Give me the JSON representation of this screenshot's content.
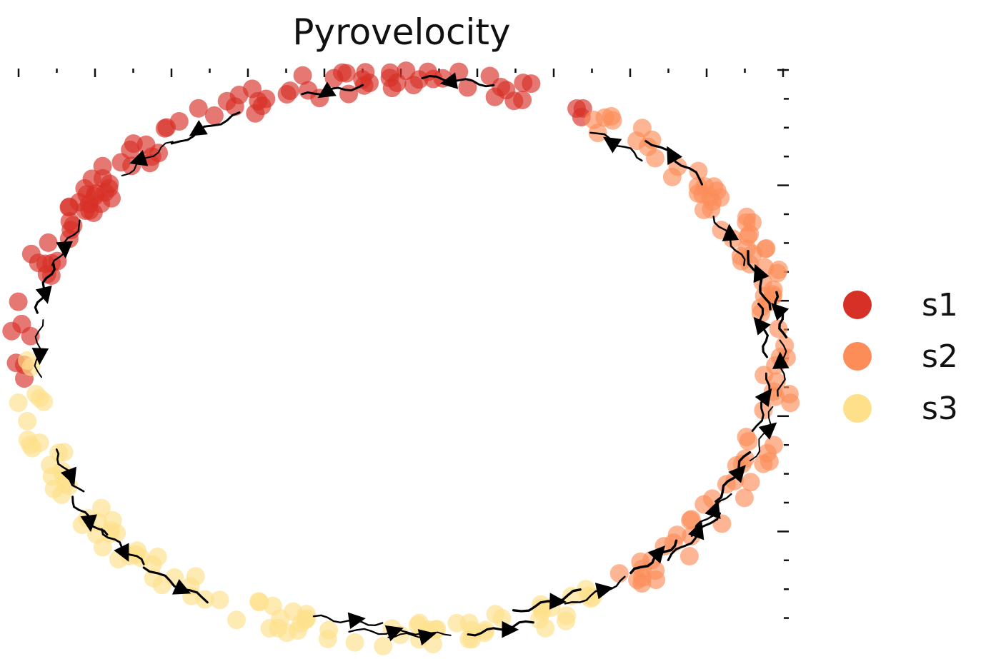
{
  "chart_data": {
    "type": "scatter",
    "title": "Pyrovelocity",
    "xlabel": "",
    "ylabel": "",
    "xlim": [
      -1.0,
      1.0
    ],
    "ylim": [
      -1.0,
      1.0
    ],
    "grid": false,
    "legend_position": "right",
    "series": [
      {
        "name": "s1",
        "color": "#d73027",
        "angle_range_deg": [
          60,
          185
        ]
      },
      {
        "name": "s2",
        "color": "#fc8d59",
        "angle_range_deg": [
          -55,
          60
        ]
      },
      {
        "name": "s3",
        "color": "#fee08b",
        "angle_range_deg": [
          180,
          305
        ]
      }
    ],
    "streamlines": "velocity stream arrows following the circular trajectory"
  },
  "legend": {
    "items": [
      {
        "label": "s1",
        "color": "#d73027"
      },
      {
        "label": "s2",
        "color": "#fc8d59"
      },
      {
        "label": "s3",
        "color": "#fee08b"
      }
    ]
  }
}
